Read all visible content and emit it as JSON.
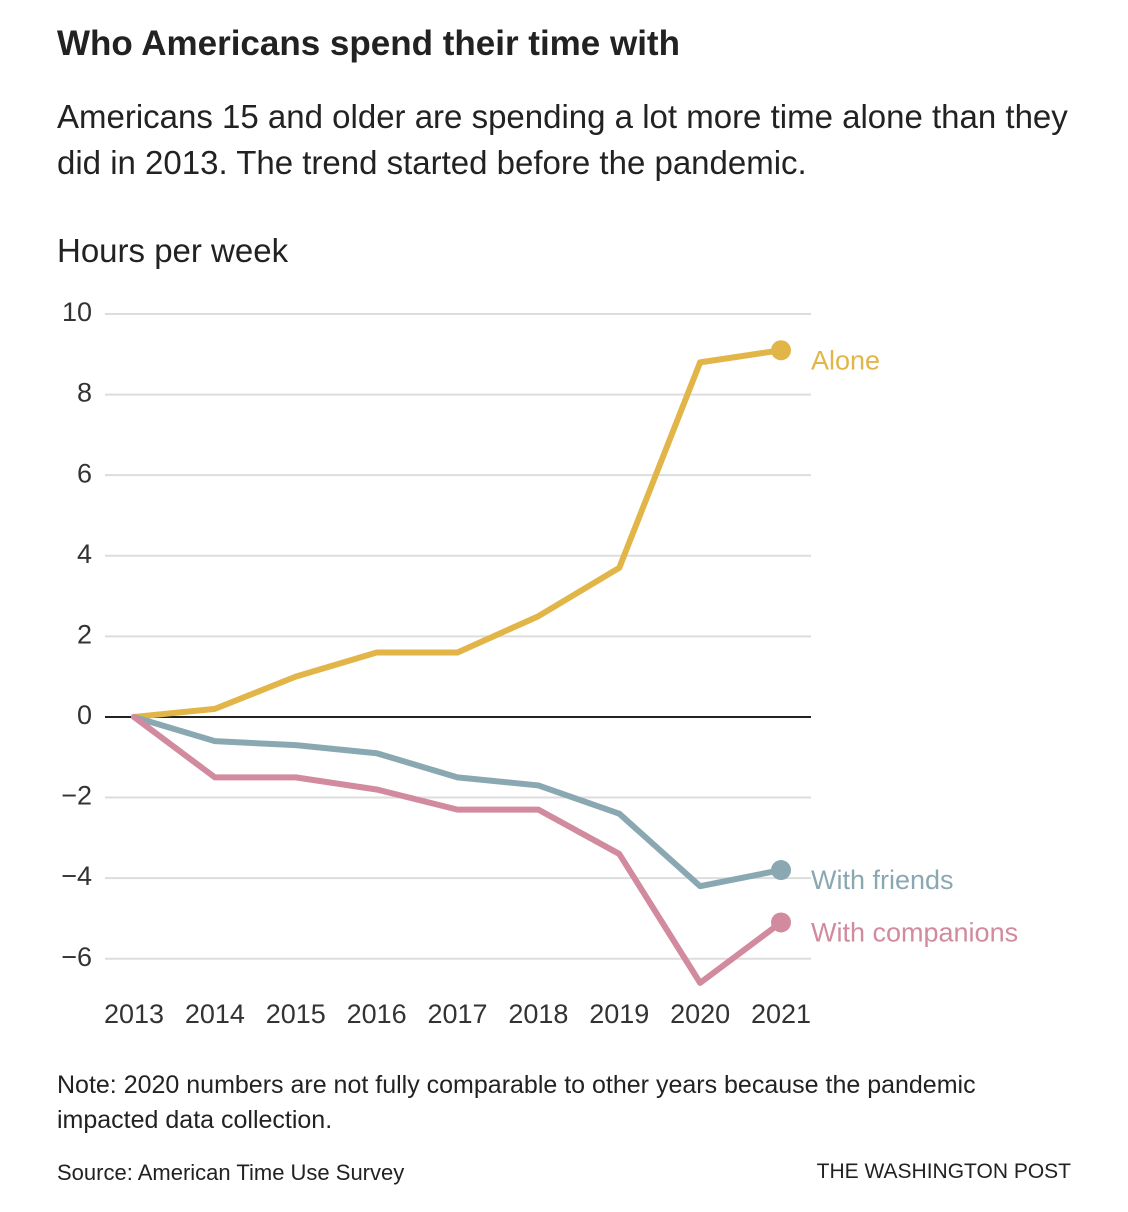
{
  "chart_data": {
    "type": "line",
    "title": "Who Americans spend their time with",
    "subtitle": "Americans 15 and older are spending a lot more time alone than they did in 2013. The trend started before the pandemic.",
    "y_label": "Hours per week",
    "x": [
      2013,
      2014,
      2015,
      2016,
      2017,
      2018,
      2019,
      2020,
      2021
    ],
    "xlim": [
      2013,
      2021
    ],
    "xticks": [
      2013,
      2014,
      2015,
      2016,
      2017,
      2018,
      2019,
      2020,
      2021
    ],
    "ylim": [
      -7,
      10
    ],
    "yticks": [
      {
        "value": -6,
        "label": "−6"
      },
      {
        "value": -4,
        "label": "−4"
      },
      {
        "value": -2,
        "label": "−2"
      },
      0,
      2,
      4,
      6,
      8,
      10
    ],
    "grid": true,
    "series": [
      {
        "name": "Alone",
        "color": "#e2b548",
        "values": [
          0,
          0.2,
          1.0,
          1.6,
          1.6,
          2.5,
          3.7,
          8.8,
          9.1
        ]
      },
      {
        "name": "With friends",
        "color": "#8aa8b1",
        "values": [
          0,
          -0.6,
          -0.7,
          -0.9,
          -1.5,
          -1.7,
          -2.4,
          -4.2,
          -3.8
        ]
      },
      {
        "name": "With companions",
        "color": "#d18a9e",
        "values": [
          0,
          -1.5,
          -1.5,
          -1.8,
          -2.3,
          -2.3,
          -3.4,
          -6.6,
          -5.1
        ]
      }
    ],
    "note": "Note: 2020 numbers are not fully comparable to other years because the pandemic impacted data collection.",
    "source": "Source: American Time Use Survey",
    "credit": "THE WASHINGTON POST"
  }
}
